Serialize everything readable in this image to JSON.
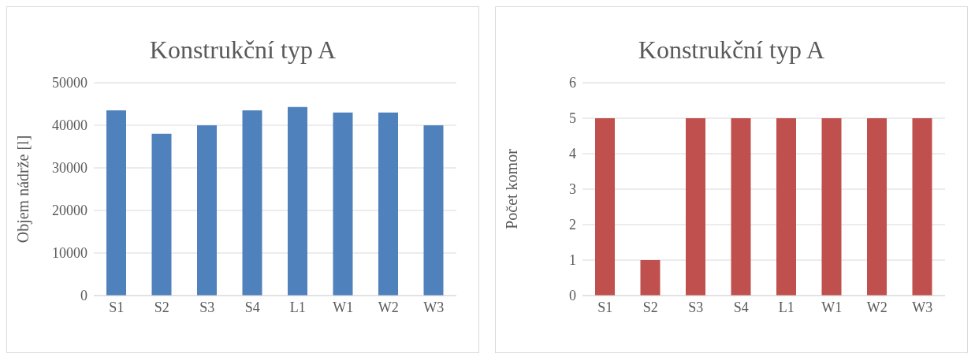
{
  "chart_data": [
    {
      "type": "bar",
      "title": "Konstrukční typ A",
      "ylabel": "Objem nádrže [l]",
      "categories": [
        "S1",
        "S2",
        "S3",
        "S4",
        "L1",
        "W1",
        "W2",
        "W3"
      ],
      "values": [
        43500,
        38000,
        40000,
        43500,
        44300,
        43000,
        43000,
        40000
      ],
      "color": "#4f81bd",
      "ylim": [
        0,
        50000
      ],
      "yticks": [
        0,
        10000,
        20000,
        30000,
        40000,
        50000
      ],
      "grid": "y"
    },
    {
      "type": "bar",
      "title": "Konstrukční typ A",
      "ylabel": "Počet komor",
      "categories": [
        "S1",
        "S2",
        "S3",
        "S4",
        "L1",
        "W1",
        "W2",
        "W3"
      ],
      "values": [
        5,
        1,
        5,
        5,
        5,
        5,
        5,
        5
      ],
      "color": "#c0504d",
      "ylim": [
        0,
        6
      ],
      "yticks": [
        0,
        1,
        2,
        3,
        4,
        5,
        6
      ],
      "grid": "y"
    }
  ]
}
